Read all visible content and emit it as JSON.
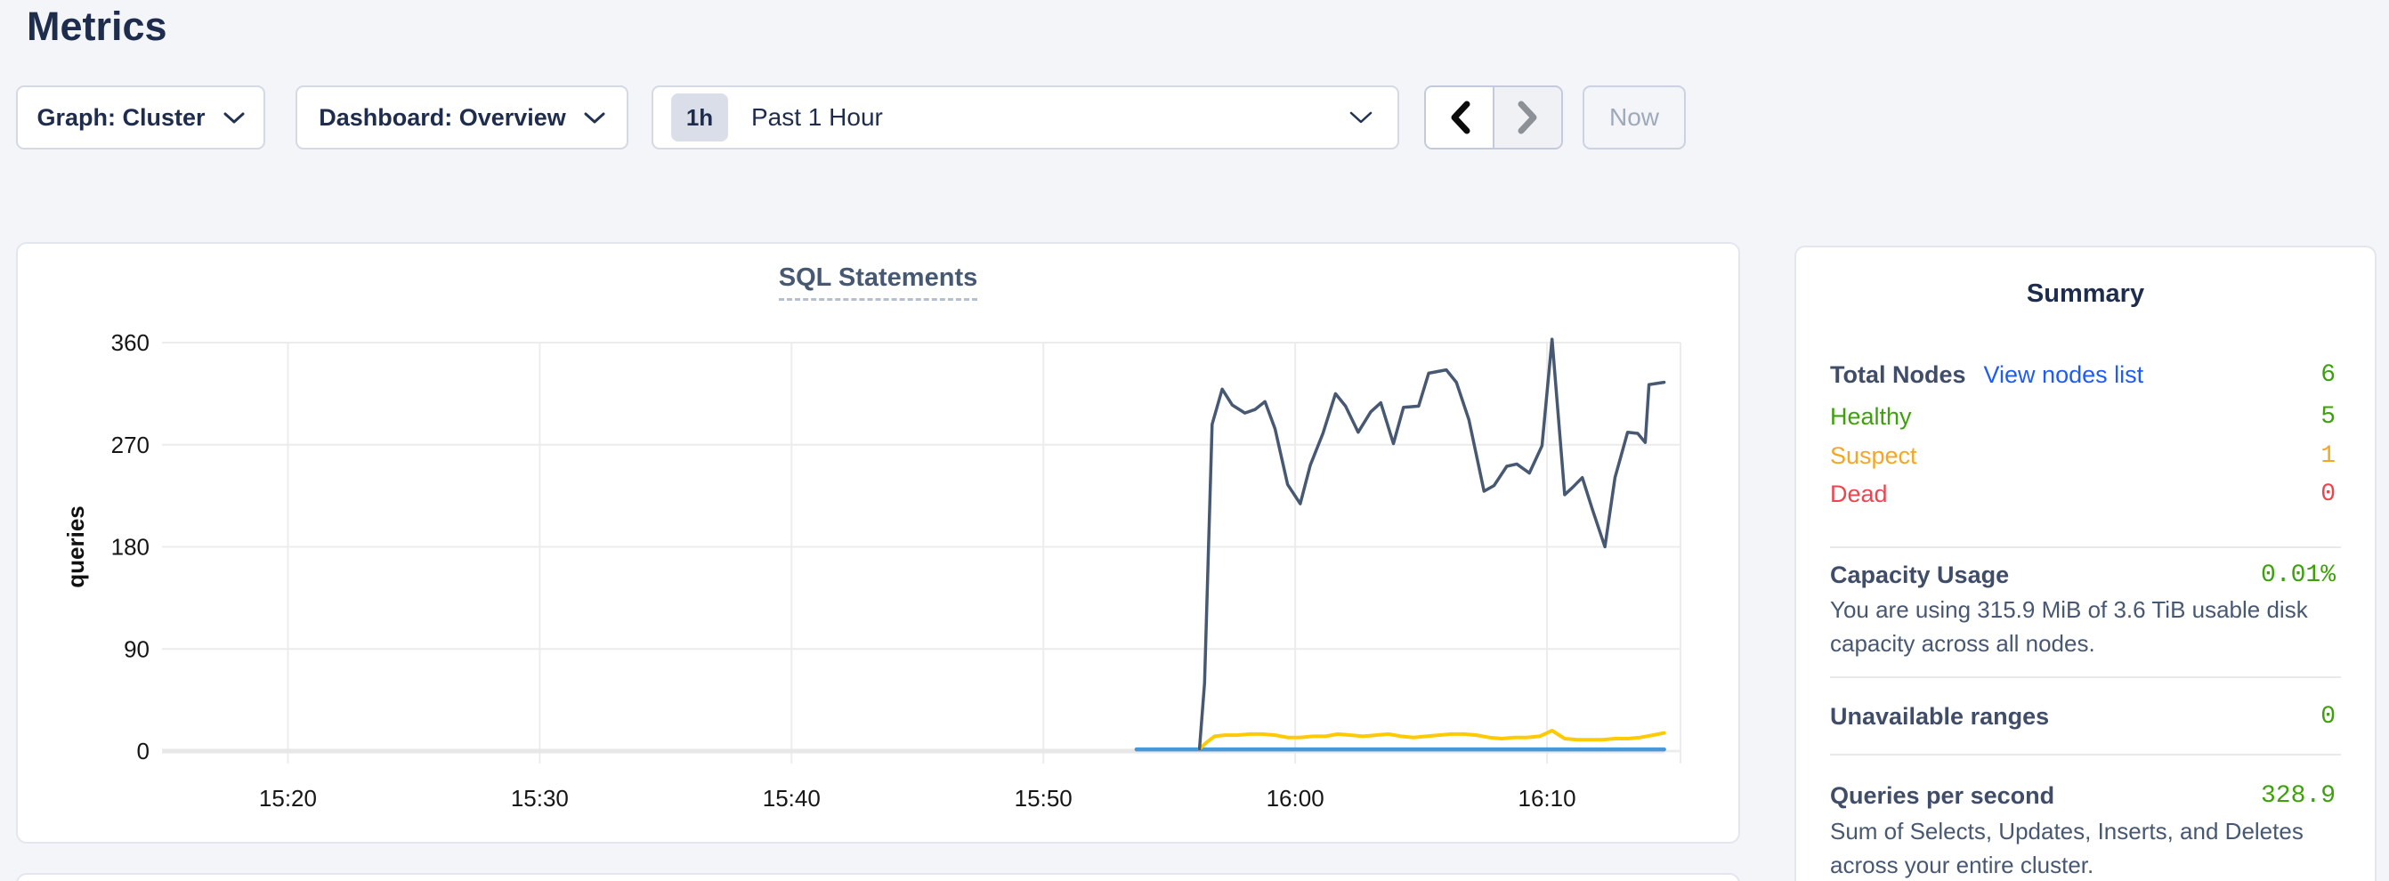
{
  "page": {
    "title": "Metrics"
  },
  "controls": {
    "graph_dropdown": "Graph: Cluster",
    "dashboard_dropdown": "Dashboard: Overview",
    "time_window": {
      "badge": "1h",
      "label": "Past 1 Hour"
    },
    "now_button": "Now"
  },
  "chart_data": {
    "type": "line",
    "title": "SQL Statements",
    "ylabel": "queries",
    "xlabel": "",
    "ylim": [
      0,
      360
    ],
    "yticks": [
      0,
      90,
      180,
      270,
      360
    ],
    "x_domain_minutes": [
      15,
      75.3
    ],
    "xticks": [
      {
        "minute": 20,
        "label": "15:20"
      },
      {
        "minute": 30,
        "label": "15:30"
      },
      {
        "minute": 40,
        "label": "15:40"
      },
      {
        "minute": 50,
        "label": "15:50"
      },
      {
        "minute": 60,
        "label": "16:00"
      },
      {
        "minute": 70,
        "label": "16:10"
      }
    ],
    "grid": true,
    "legend": "none",
    "baseline_extent_minutes": [
      15,
      74.65
    ],
    "baseline_color": "#e7e7e7",
    "series": [
      {
        "name": "series-light-blue-flat",
        "color": "#4a97d6",
        "width": 4.5,
        "points": [
          [
            53.7,
            1.5
          ],
          [
            74.65,
            1.5
          ]
        ]
      },
      {
        "name": "series-yellow",
        "color": "#fdca04",
        "width": 4,
        "points": [
          [
            56.2,
            2
          ],
          [
            56.5,
            8
          ],
          [
            56.8,
            13
          ],
          [
            57.2,
            14
          ],
          [
            57.7,
            14
          ],
          [
            58.2,
            15
          ],
          [
            58.7,
            15
          ],
          [
            59.2,
            14
          ],
          [
            59.7,
            12
          ],
          [
            60.2,
            12
          ],
          [
            60.7,
            13
          ],
          [
            61.2,
            13
          ],
          [
            61.7,
            15
          ],
          [
            62.2,
            14
          ],
          [
            62.7,
            13
          ],
          [
            63.2,
            14
          ],
          [
            63.7,
            15
          ],
          [
            64.2,
            13
          ],
          [
            64.7,
            12
          ],
          [
            65.2,
            13
          ],
          [
            65.7,
            14
          ],
          [
            66.2,
            15
          ],
          [
            66.7,
            15
          ],
          [
            67.2,
            14
          ],
          [
            67.7,
            12
          ],
          [
            68.2,
            11
          ],
          [
            68.7,
            12
          ],
          [
            69.2,
            12
          ],
          [
            69.7,
            13
          ],
          [
            70.2,
            18
          ],
          [
            70.7,
            11
          ],
          [
            71.2,
            10
          ],
          [
            71.7,
            10
          ],
          [
            72.2,
            10
          ],
          [
            72.7,
            11
          ],
          [
            73.2,
            11
          ],
          [
            73.7,
            12
          ],
          [
            74.2,
            14
          ],
          [
            74.65,
            16
          ]
        ]
      },
      {
        "name": "series-dark-slate",
        "color": "#475872",
        "width": 3.5,
        "points": [
          [
            56.2,
            2
          ],
          [
            56.4,
            60
          ],
          [
            56.7,
            288
          ],
          [
            57.1,
            319
          ],
          [
            57.5,
            305
          ],
          [
            58.0,
            298
          ],
          [
            58.4,
            301
          ],
          [
            58.8,
            308
          ],
          [
            59.2,
            284
          ],
          [
            59.7,
            235
          ],
          [
            60.2,
            218
          ],
          [
            60.6,
            252
          ],
          [
            61.1,
            280
          ],
          [
            61.6,
            315
          ],
          [
            62.0,
            304
          ],
          [
            62.5,
            281
          ],
          [
            63.0,
            299
          ],
          [
            63.4,
            307
          ],
          [
            63.9,
            271
          ],
          [
            64.3,
            303
          ],
          [
            64.9,
            304
          ],
          [
            65.3,
            333
          ],
          [
            66.0,
            336
          ],
          [
            66.4,
            325
          ],
          [
            66.9,
            292
          ],
          [
            67.5,
            229
          ],
          [
            67.9,
            234
          ],
          [
            68.4,
            251
          ],
          [
            68.8,
            253
          ],
          [
            69.3,
            245
          ],
          [
            69.8,
            269
          ],
          [
            70.2,
            363
          ],
          [
            70.7,
            226
          ],
          [
            71.0,
            232
          ],
          [
            71.4,
            241
          ],
          [
            71.8,
            213
          ],
          [
            72.3,
            180
          ],
          [
            72.7,
            241
          ],
          [
            72.9,
            257
          ],
          [
            73.2,
            281
          ],
          [
            73.6,
            280
          ],
          [
            73.9,
            272
          ],
          [
            74.05,
            323
          ],
          [
            74.35,
            324
          ],
          [
            74.65,
            325
          ]
        ]
      }
    ]
  },
  "summary": {
    "title": "Summary",
    "node_rows": [
      {
        "label": "Total Nodes",
        "link": "View nodes list",
        "value": "6",
        "color": "green"
      },
      {
        "label": "Healthy",
        "value": "5",
        "color": "green"
      },
      {
        "label": "Suspect",
        "value": "1",
        "color": "orange"
      },
      {
        "label": "Dead",
        "value": "0",
        "color": "red"
      }
    ],
    "capacity": {
      "label": "Capacity Usage",
      "value": "0.01%",
      "description": "You are using 315.9 MiB of 3.6 TiB usable disk capacity across all nodes."
    },
    "unavailable": {
      "label": "Unavailable ranges",
      "value": "0"
    },
    "qps": {
      "label": "Queries per second",
      "value": "328.9",
      "description": "Sum of Selects, Updates, Inserts, and Deletes across your entire cluster."
    }
  },
  "colors": {
    "green": "#3da10c",
    "orange": "#f5a623",
    "red": "#f04350",
    "link_blue": "#1e5cf5",
    "heading": "#1e2d4d",
    "slate_text": "#475872",
    "line_dark": "#475872",
    "line_yellow": "#fdca04",
    "line_blue": "#4a97d6",
    "grid": "#ececec",
    "page_bg": "#f4f5f9"
  }
}
